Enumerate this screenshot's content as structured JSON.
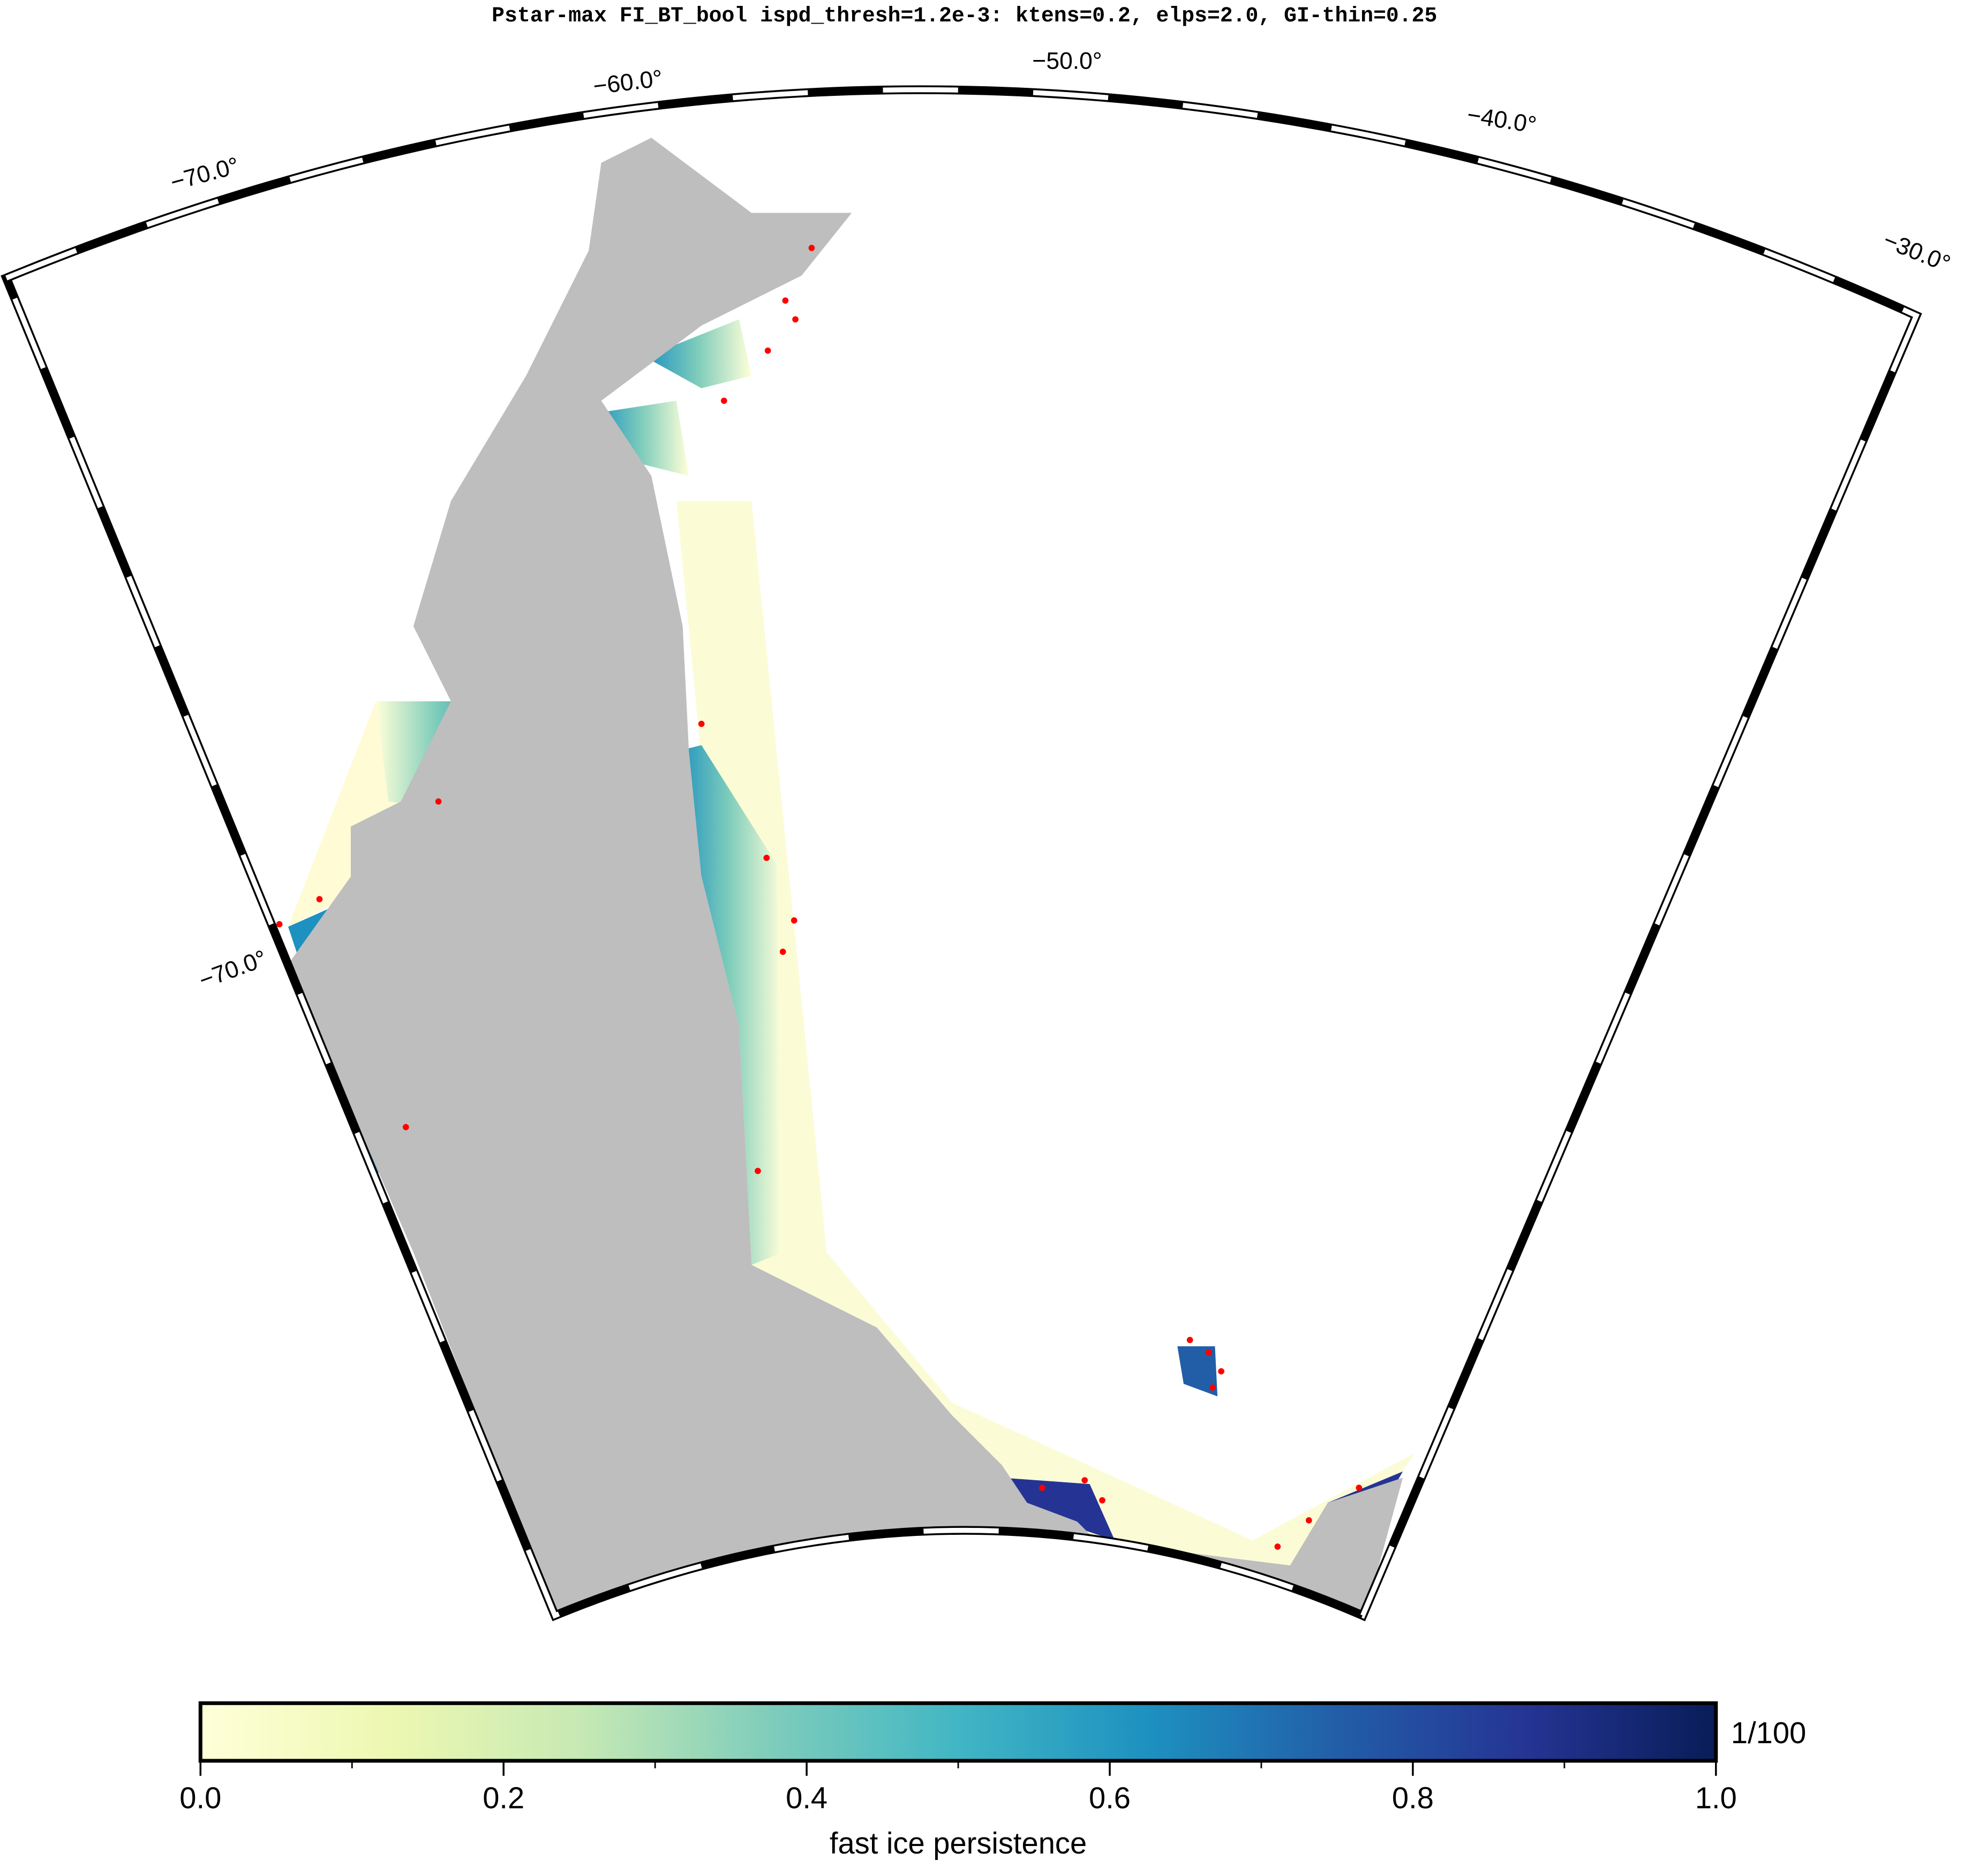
{
  "title": "Pstar-max FI_BT_bool ispd_thresh=1.2e-3: ktens=0.2, elps=2.0, GI-thin=0.25",
  "graticule_labels": [
    "−70.0°",
    "−60.0°",
    "−50.0°",
    "−40.0°",
    "−30.0°",
    "−70.0°"
  ],
  "colorbar": {
    "label": "fast ice persistence",
    "unit": "1/100",
    "lim": [
      0,
      1
    ],
    "ticks": [
      {
        "value": 0,
        "label": "0.0"
      },
      0.2,
      0.4,
      0.6,
      0.8,
      {
        "value": 1,
        "label": "1.0"
      }
    ],
    "minor_ticks": [
      0.1,
      0.3,
      0.5,
      0.7,
      0.9
    ],
    "colors": [
      "#ffffd9",
      "#edf8b1",
      "#c7e9b4",
      "#7fcdbb",
      "#41b6c4",
      "#1d91c0",
      "#225ea8",
      "#253494",
      "#081d58"
    ]
  }
}
